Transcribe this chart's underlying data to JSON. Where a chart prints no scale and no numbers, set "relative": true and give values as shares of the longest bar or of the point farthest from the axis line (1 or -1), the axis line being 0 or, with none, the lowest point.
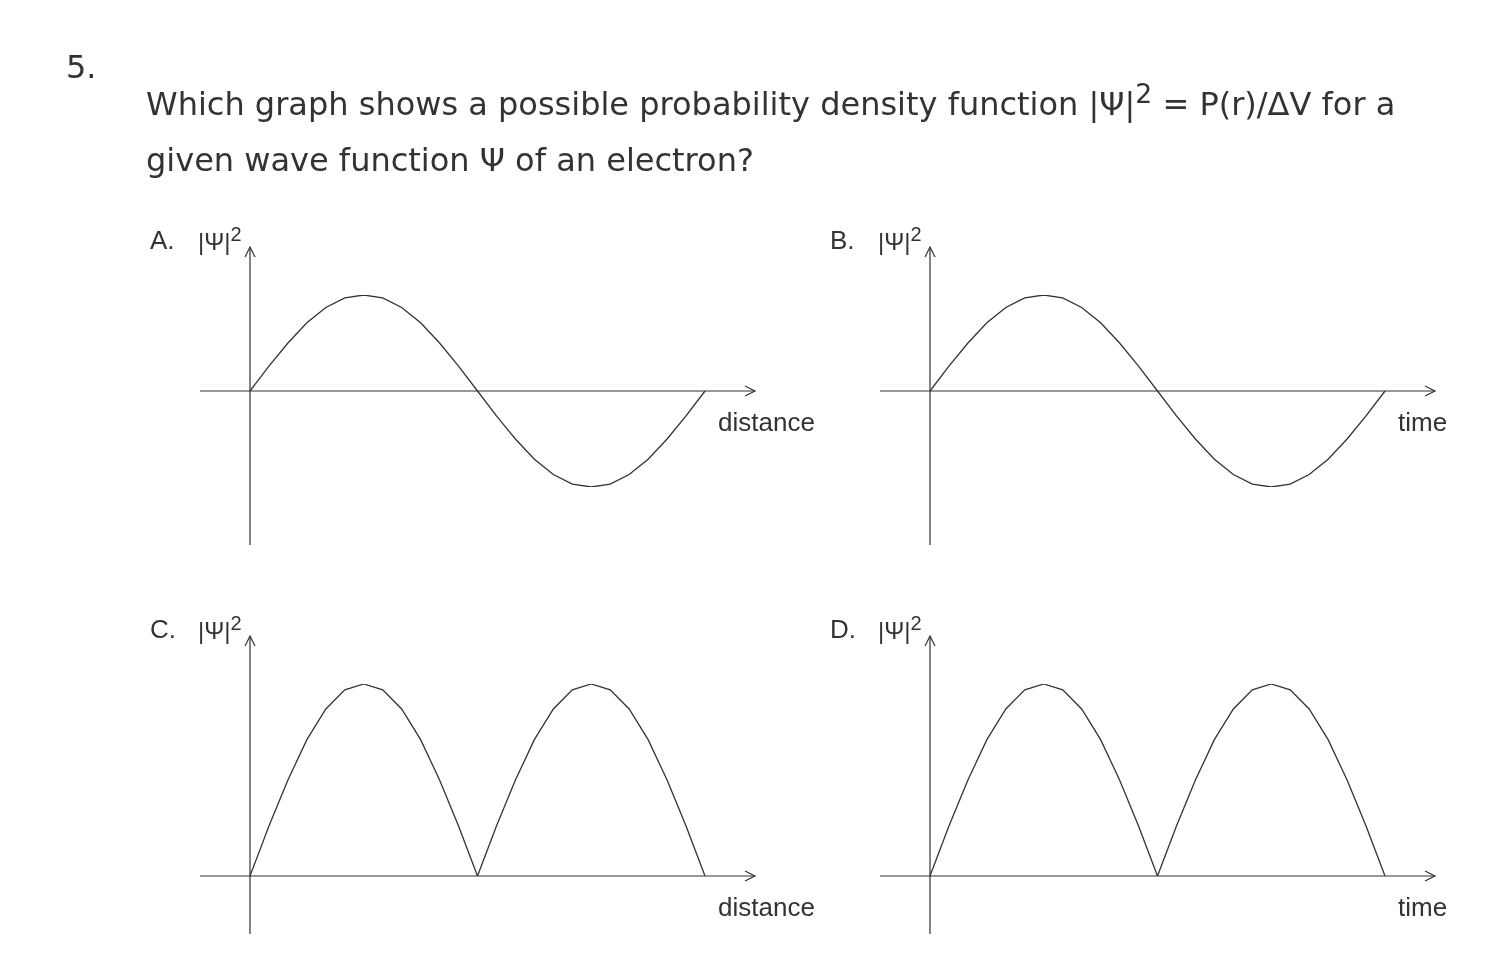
{
  "chart_data": [
    {
      "type": "other",
      "title": "5.",
      "subtitle": "Which graph shows a possible probability density function |Ψ|$^{2}$ = P(r)/ΔV for a given wave function Ψ of an electron?"
    },
    {
      "type": "line",
      "title": "A.",
      "ylabel": "|Ψ|$^{2}$",
      "xlabel": "distance",
      "relative": true,
      "color": "#333333",
      "categories": [
        null,
        null,
        null,
        null,
        null,
        null,
        null,
        null,
        null,
        null,
        null,
        null,
        null,
        null,
        null,
        null,
        null,
        null,
        null,
        null,
        null,
        null,
        null,
        null,
        null
      ],
      "values": [
        0,
        0.26,
        0.5,
        0.71,
        0.87,
        0.97,
        1,
        0.97,
        0.87,
        0.71,
        0.5,
        0.26,
        0,
        -0.26,
        -0.5,
        -0.71,
        -0.87,
        -0.97,
        -1,
        -0.97,
        -0.87,
        -0.71,
        -0.5,
        -0.26,
        0
      ]
    },
    {
      "type": "line",
      "title": "B.",
      "ylabel": "|Ψ|$^{2}$",
      "xlabel": "time",
      "relative": true,
      "color": "#333333",
      "categories": [
        null,
        null,
        null,
        null,
        null,
        null,
        null,
        null,
        null,
        null,
        null,
        null,
        null,
        null,
        null,
        null,
        null,
        null,
        null,
        null,
        null,
        null,
        null,
        null,
        null
      ],
      "values": [
        0,
        0.26,
        0.5,
        0.71,
        0.87,
        0.97,
        1,
        0.97,
        0.87,
        0.71,
        0.5,
        0.26,
        0,
        -0.26,
        -0.5,
        -0.71,
        -0.87,
        -0.97,
        -1,
        -0.97,
        -0.87,
        -0.71,
        -0.5,
        -0.26,
        0
      ]
    },
    {
      "type": "line",
      "title": "C.",
      "ylabel": "|Ψ|$^{2}$",
      "xlabel": "distance",
      "relative": true,
      "color": "#333333",
      "categories": [
        null,
        null,
        null,
        null,
        null,
        null,
        null,
        null,
        null,
        null,
        null,
        null,
        null,
        null,
        null,
        null,
        null,
        null,
        null,
        null,
        null,
        null,
        null,
        null,
        null
      ],
      "values": [
        0,
        0.26,
        0.5,
        0.71,
        0.87,
        0.97,
        1,
        0.97,
        0.87,
        0.71,
        0.5,
        0.26,
        0,
        0.26,
        0.5,
        0.71,
        0.87,
        0.97,
        1,
        0.97,
        0.87,
        0.71,
        0.5,
        0.26,
        0
      ]
    },
    {
      "type": "line",
      "title": "D.",
      "ylabel": "|Ψ|$^{2}$",
      "xlabel": "time",
      "relative": true,
      "color": "#333333",
      "categories": [
        null,
        null,
        null,
        null,
        null,
        null,
        null,
        null,
        null,
        null,
        null,
        null,
        null,
        null,
        null,
        null,
        null,
        null,
        null,
        null,
        null,
        null,
        null,
        null,
        null
      ],
      "values": [
        0,
        0.26,
        0.5,
        0.71,
        0.87,
        0.97,
        1,
        0.97,
        0.87,
        0.71,
        0.5,
        0.26,
        0,
        0.26,
        0.5,
        0.71,
        0.87,
        0.97,
        1,
        0.97,
        0.87,
        0.71,
        0.5,
        0.26,
        0
      ]
    }
  ]
}
